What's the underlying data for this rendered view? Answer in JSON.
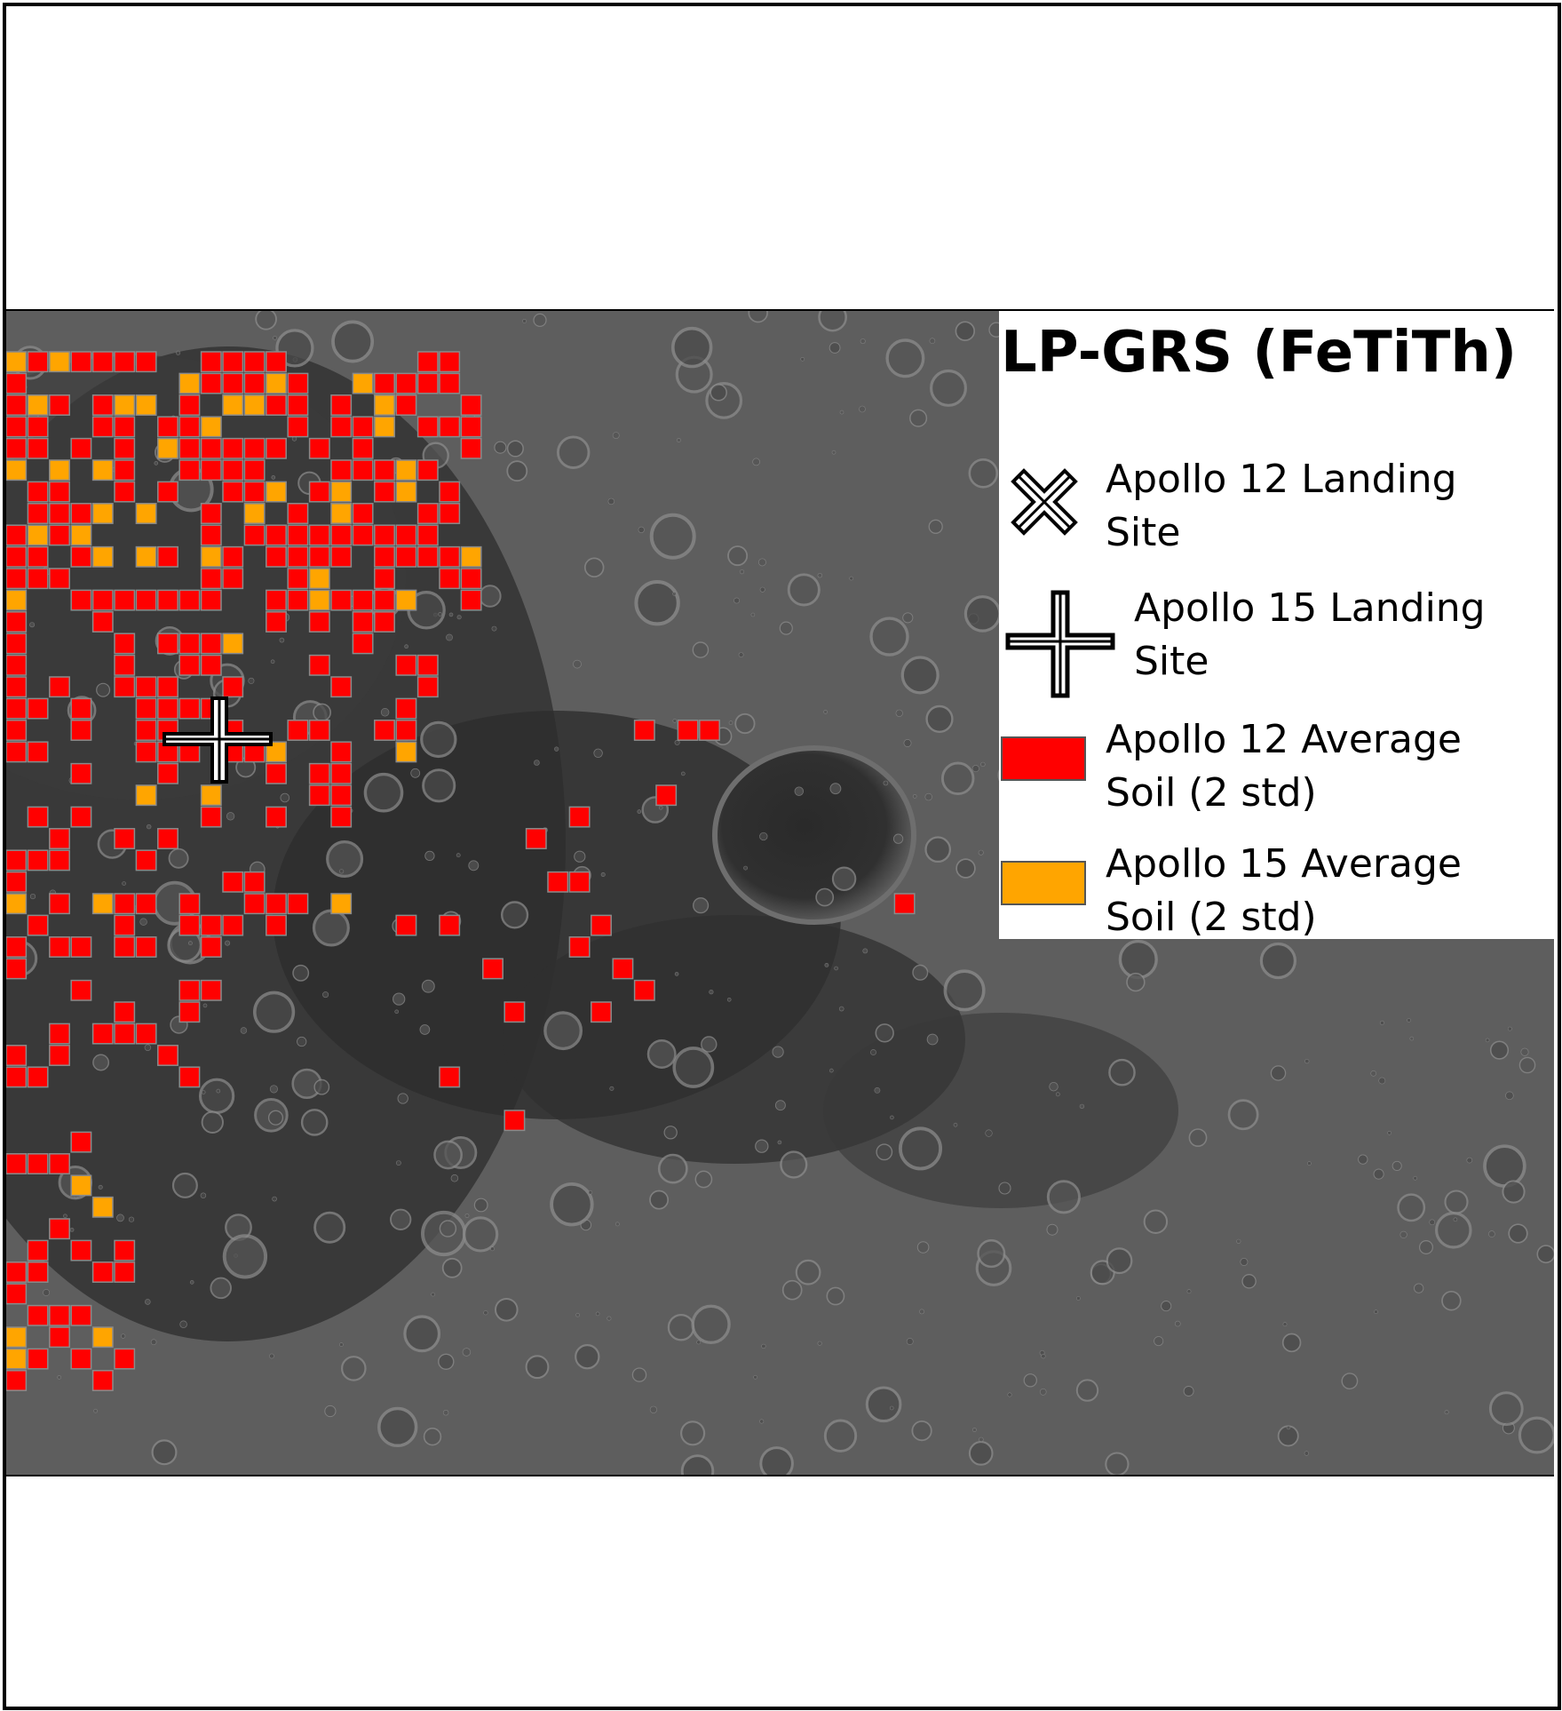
{
  "legend": {
    "title": "LP-GRS (FeTiTh)",
    "items": [
      {
        "icon": "x-marker-icon",
        "line1": "Apollo 12 Landing",
        "line2": "Site"
      },
      {
        "icon": "plus-marker-icon",
        "line1": "Apollo 15 Landing",
        "line2": "Site"
      },
      {
        "icon": "swatch",
        "color": "#ff0000",
        "line1": "Apollo 12 Average",
        "line2": "Soil (2 std)"
      },
      {
        "icon": "swatch",
        "color": "#ffa500",
        "line1": "Apollo 15 Average",
        "line2": "Soil (2 std)"
      }
    ]
  },
  "colors": {
    "apollo12": "#ff0000",
    "apollo15": "#ffa500",
    "cell_border": "#8a8a8a"
  }
}
